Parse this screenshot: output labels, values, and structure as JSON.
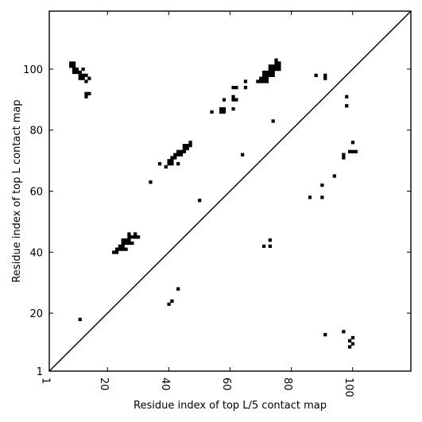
{
  "chart_data": {
    "type": "scatter",
    "title": "",
    "xlabel": "Residue index of top L/5 contact map",
    "ylabel": "Residue index of top L contact map",
    "xlim": [
      1,
      119
    ],
    "ylim": [
      1,
      119
    ],
    "xticks": [
      1,
      20,
      40,
      60,
      80,
      100
    ],
    "yticks": [
      1,
      20,
      40,
      60,
      80,
      100
    ],
    "xtick_labels": [
      "1",
      "20",
      "40",
      "60",
      "80",
      "100"
    ],
    "ytick_labels": [
      "1",
      "20",
      "40",
      "60",
      "80",
      "100"
    ],
    "diagonal": true,
    "grid": false,
    "marker_color": "#000000",
    "series": [
      {
        "points": [
          [
            8,
            102
          ],
          [
            9,
            102
          ],
          [
            8,
            101
          ],
          [
            9,
            101
          ],
          [
            9,
            100
          ],
          [
            10,
            100
          ],
          [
            9,
            99
          ],
          [
            10,
            99
          ],
          [
            11,
            99
          ],
          [
            12,
            100
          ],
          [
            11,
            98
          ],
          [
            12,
            98
          ],
          [
            13,
            98
          ],
          [
            11,
            97
          ],
          [
            12,
            97
          ],
          [
            14,
            97
          ],
          [
            13,
            96
          ],
          [
            13,
            92
          ],
          [
            14,
            92
          ],
          [
            13,
            91
          ],
          [
            11,
            18
          ],
          [
            22,
            40
          ],
          [
            23,
            40
          ],
          [
            23,
            41
          ],
          [
            24,
            41
          ],
          [
            25,
            41
          ],
          [
            26,
            41
          ],
          [
            24,
            42
          ],
          [
            25,
            42
          ],
          [
            25,
            43
          ],
          [
            26,
            43
          ],
          [
            25,
            44
          ],
          [
            26,
            44
          ],
          [
            27,
            44
          ],
          [
            27,
            43
          ],
          [
            28,
            43
          ],
          [
            27,
            45
          ],
          [
            28,
            45
          ],
          [
            29,
            45
          ],
          [
            30,
            45
          ],
          [
            27,
            46
          ],
          [
            29,
            46
          ],
          [
            34,
            63
          ],
          [
            37,
            69
          ],
          [
            39,
            68
          ],
          [
            40,
            69
          ],
          [
            40,
            70
          ],
          [
            41,
            69
          ],
          [
            41,
            70
          ],
          [
            41,
            71
          ],
          [
            42,
            71
          ],
          [
            42,
            72
          ],
          [
            43,
            72
          ],
          [
            43,
            73
          ],
          [
            44,
            72
          ],
          [
            44,
            73
          ],
          [
            45,
            73
          ],
          [
            45,
            74
          ],
          [
            45,
            75
          ],
          [
            46,
            74
          ],
          [
            46,
            75
          ],
          [
            47,
            75
          ],
          [
            47,
            76
          ],
          [
            43,
            69
          ],
          [
            50,
            57
          ],
          [
            40,
            23
          ],
          [
            41,
            24
          ],
          [
            43,
            28
          ],
          [
            54,
            86
          ],
          [
            57,
            87
          ],
          [
            58,
            87
          ],
          [
            58,
            86
          ],
          [
            57,
            86
          ],
          [
            58,
            90
          ],
          [
            61,
            91
          ],
          [
            61,
            90
          ],
          [
            62,
            90
          ],
          [
            61,
            87
          ],
          [
            61,
            94
          ],
          [
            62,
            94
          ],
          [
            64,
            72
          ],
          [
            65,
            94
          ],
          [
            65,
            96
          ],
          [
            69,
            96
          ],
          [
            70,
            96
          ],
          [
            71,
            96
          ],
          [
            72,
            96
          ],
          [
            70,
            97
          ],
          [
            71,
            97
          ],
          [
            72,
            97
          ],
          [
            71,
            98
          ],
          [
            72,
            98
          ],
          [
            73,
            98
          ],
          [
            74,
            98
          ],
          [
            71,
            99
          ],
          [
            72,
            99
          ],
          [
            73,
            99
          ],
          [
            74,
            99
          ],
          [
            73,
            100
          ],
          [
            74,
            100
          ],
          [
            75,
            100
          ],
          [
            76,
            100
          ],
          [
            73,
            101
          ],
          [
            74,
            101
          ],
          [
            75,
            101
          ],
          [
            76,
            101
          ],
          [
            75,
            102
          ],
          [
            76,
            102
          ],
          [
            75,
            103
          ],
          [
            74,
            83
          ],
          [
            71,
            42
          ],
          [
            73,
            42
          ],
          [
            73,
            44
          ],
          [
            88,
            98
          ],
          [
            91,
            98
          ],
          [
            91,
            97
          ],
          [
            98,
            91
          ],
          [
            98,
            88
          ],
          [
            97,
            72
          ],
          [
            97,
            71
          ],
          [
            99,
            73
          ],
          [
            100,
            73
          ],
          [
            100,
            76
          ],
          [
            101,
            73
          ],
          [
            94,
            65
          ],
          [
            90,
            62
          ],
          [
            86,
            58
          ],
          [
            90,
            58
          ],
          [
            91,
            13
          ],
          [
            97,
            14
          ],
          [
            100,
            12
          ],
          [
            99,
            11
          ],
          [
            100,
            10
          ],
          [
            99,
            9
          ]
        ]
      }
    ]
  }
}
